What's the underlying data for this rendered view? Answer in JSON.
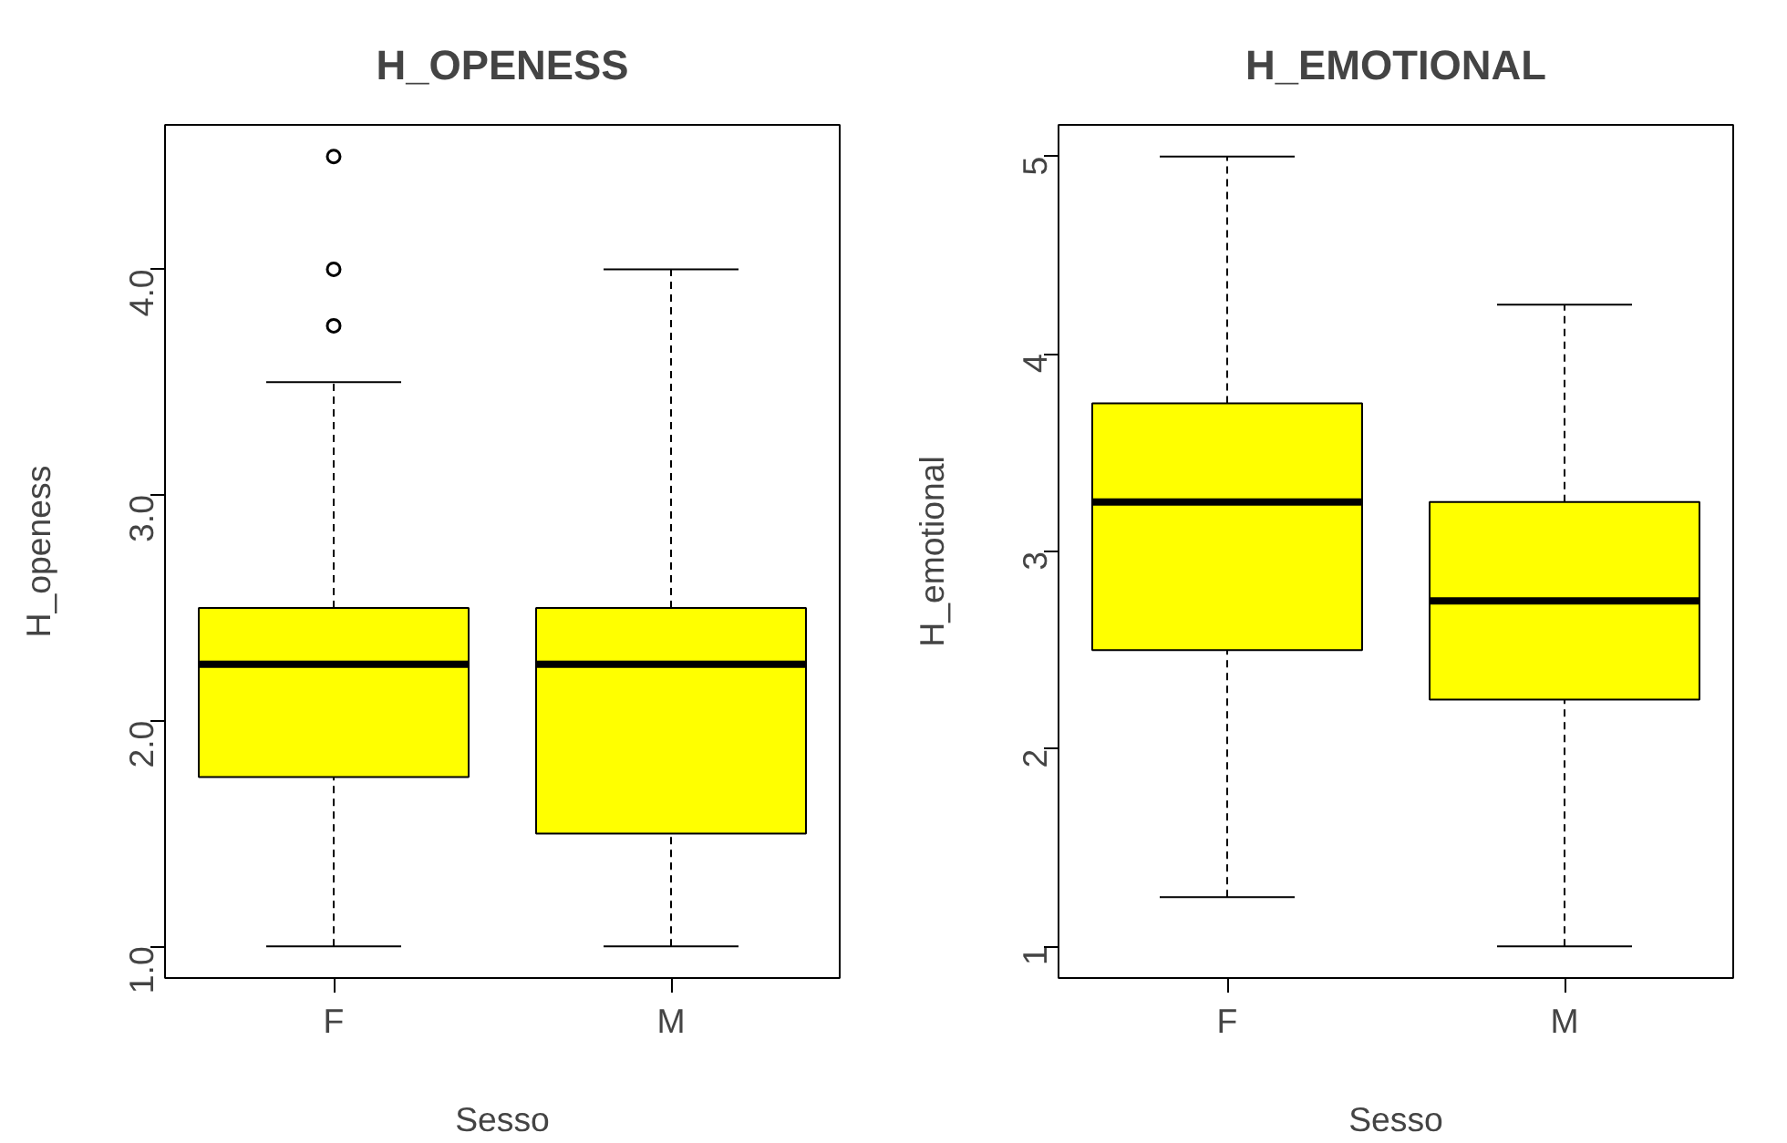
{
  "chart_data": [
    {
      "type": "box",
      "title": "H_OPENESS",
      "xlabel": "Sesso",
      "ylabel": "H_openess",
      "categories": [
        "F",
        "M"
      ],
      "color": "#ffff00",
      "boxes": [
        {
          "low": 1.0,
          "q1": 1.75,
          "median": 2.25,
          "q3": 2.5,
          "high": 3.5,
          "outliers": [
            3.75,
            4.0,
            4.5
          ]
        },
        {
          "low": 1.0,
          "q1": 1.5,
          "median": 2.25,
          "q3": 2.5,
          "high": 4.0
        }
      ],
      "ylim": [
        0.86,
        4.64
      ],
      "yticks": [
        {
          "value": 1,
          "label": "1.0"
        },
        {
          "value": 2,
          "label": "2.0"
        },
        {
          "value": 3,
          "label": "3.0"
        },
        {
          "value": 4,
          "label": "4.0"
        }
      ],
      "grid": false
    },
    {
      "type": "box",
      "title": "H_EMOTIONAL",
      "xlabel": "Sesso",
      "ylabel": "H_emotional",
      "categories": [
        "F",
        "M"
      ],
      "color": "#ffff00",
      "boxes": [
        {
          "low": 1.25,
          "q1": 2.5,
          "median": 3.25,
          "q3": 3.75,
          "high": 5.0
        },
        {
          "low": 1.0,
          "q1": 2.25,
          "median": 2.75,
          "q3": 3.25,
          "high": 4.25
        }
      ],
      "ylim": [
        0.84,
        5.16
      ],
      "yticks": [
        1,
        2,
        3,
        4,
        5
      ],
      "grid": false
    }
  ]
}
